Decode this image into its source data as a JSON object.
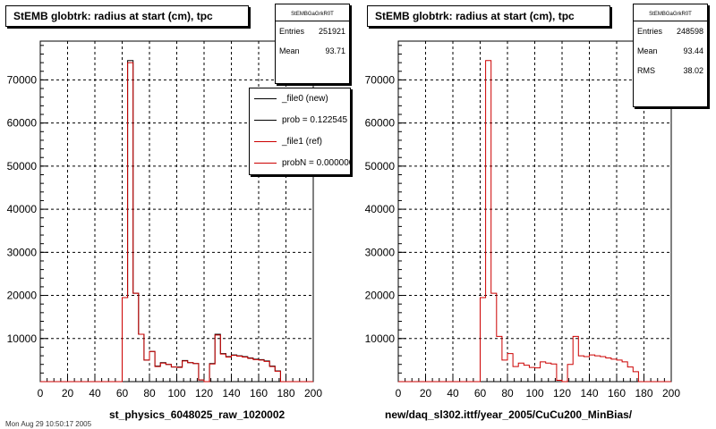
{
  "footer": "Mon Aug 29 10:50:17 2005",
  "colors": {
    "new": "#000000",
    "ref": "#cc0000"
  },
  "panels": [
    {
      "title": "StEMB globtrk: radius at start (cm), tpc",
      "xlabel": "st_physics_6048025_raw_1020002",
      "stats": {
        "name": "StEMBGaGrkR0T",
        "rows": [
          {
            "label": "Entries",
            "value": "251921"
          },
          {
            "label": "Mean",
            "value": "93.71"
          }
        ]
      },
      "legend": [
        {
          "label": "_file0 (new)",
          "color": "#000000"
        },
        {
          "label": "prob = 0.122545",
          "color": "#000000"
        },
        {
          "label": "_file1 (ref)",
          "color": "#cc0000"
        },
        {
          "label": "probN = 0.000000",
          "color": "#cc0000"
        }
      ]
    },
    {
      "title": "StEMB globtrk: radius at start (cm), tpc",
      "xlabel": "new/daq_sl302.ittf/year_2005/CuCu200_MinBias/",
      "stats": {
        "name": "StEMBGaGrkR0T",
        "rows": [
          {
            "label": "Entries",
            "value": "248598"
          },
          {
            "label": "Mean",
            "value": "93.44"
          },
          {
            "label": "RMS",
            "value": "38.02"
          }
        ]
      },
      "legend": []
    }
  ],
  "chart_data": [
    {
      "type": "bar",
      "title": "StEMB globtrk: radius at start (cm), tpc",
      "xlabel": "st_physics_6048025_raw_1020002",
      "xlim": [
        0,
        200
      ],
      "ylim": [
        0,
        79000
      ],
      "xticks": [
        0,
        20,
        40,
        60,
        80,
        100,
        120,
        140,
        160,
        180,
        200
      ],
      "yticks": [
        10000,
        20000,
        30000,
        40000,
        50000,
        60000,
        70000
      ],
      "ytick_labels": [
        "10000",
        "20000",
        "30000",
        "40000",
        "50000",
        "60000",
        "70000"
      ],
      "grid": true,
      "bin_width": 4,
      "bin_low_edges": [
        0,
        4,
        8,
        12,
        16,
        20,
        24,
        28,
        32,
        36,
        40,
        44,
        48,
        52,
        56,
        60,
        64,
        68,
        72,
        76,
        80,
        84,
        88,
        92,
        96,
        100,
        104,
        108,
        112,
        116,
        120,
        124,
        128,
        132,
        136,
        140,
        144,
        148,
        152,
        156,
        160,
        164,
        168,
        172,
        176,
        180,
        184,
        188,
        192,
        196
      ],
      "series": [
        {
          "name": "_file0 (new)",
          "values": [
            0,
            0,
            0,
            0,
            0,
            0,
            0,
            0,
            0,
            0,
            0,
            0,
            0,
            0,
            0,
            19500,
            74500,
            20500,
            11000,
            5000,
            7000,
            3600,
            4400,
            4000,
            3400,
            3400,
            4900,
            4400,
            4200,
            400,
            0,
            4200,
            11000,
            6500,
            5800,
            6200,
            6000,
            5800,
            5500,
            5200,
            5100,
            4800,
            3600,
            2500,
            0,
            0,
            0,
            0,
            0,
            0
          ]
        },
        {
          "name": "_file1 (ref)",
          "values": [
            0,
            0,
            0,
            0,
            0,
            0,
            0,
            0,
            0,
            0,
            0,
            0,
            0,
            0,
            0,
            19500,
            74000,
            20500,
            11000,
            5000,
            7000,
            3500,
            4300,
            4000,
            3400,
            3300,
            4800,
            4400,
            4200,
            400,
            0,
            4100,
            10800,
            6400,
            5700,
            6100,
            5900,
            5700,
            5400,
            5100,
            5000,
            4700,
            3500,
            2400,
            0,
            0,
            0,
            0,
            0,
            0
          ]
        }
      ]
    },
    {
      "type": "bar",
      "title": "StEMB globtrk: radius at start (cm), tpc",
      "xlabel": "new/daq_sl302.ittf/year_2005/CuCu200_MinBias/",
      "xlim": [
        0,
        200
      ],
      "ylim": [
        0,
        79000
      ],
      "xticks": [
        0,
        20,
        40,
        60,
        80,
        100,
        120,
        140,
        160,
        180,
        200
      ],
      "yticks": [
        10000,
        20000,
        30000,
        40000,
        50000,
        60000,
        70000
      ],
      "ytick_labels": [
        "10000",
        "20000",
        "30000",
        "40000",
        "50000",
        "60000",
        "70000"
      ],
      "grid": true,
      "bin_width": 4,
      "bin_low_edges": [
        0,
        4,
        8,
        12,
        16,
        20,
        24,
        28,
        32,
        36,
        40,
        44,
        48,
        52,
        56,
        60,
        64,
        68,
        72,
        76,
        80,
        84,
        88,
        92,
        96,
        100,
        104,
        108,
        112,
        116,
        120,
        124,
        128,
        132,
        136,
        140,
        144,
        148,
        152,
        156,
        160,
        164,
        168,
        172,
        176,
        180,
        184,
        188,
        192,
        196
      ],
      "series": [
        {
          "name": "",
          "values": [
            0,
            0,
            0,
            0,
            0,
            0,
            0,
            0,
            0,
            0,
            0,
            0,
            0,
            0,
            0,
            19500,
            74500,
            20500,
            10500,
            5000,
            6500,
            3500,
            4300,
            3800,
            3300,
            3200,
            4600,
            4300,
            4100,
            300,
            0,
            4000,
            10500,
            6000,
            5800,
            6200,
            6000,
            5800,
            5500,
            5200,
            5000,
            4600,
            3400,
            2300,
            0,
            0,
            0,
            0,
            0,
            0
          ]
        }
      ]
    }
  ]
}
